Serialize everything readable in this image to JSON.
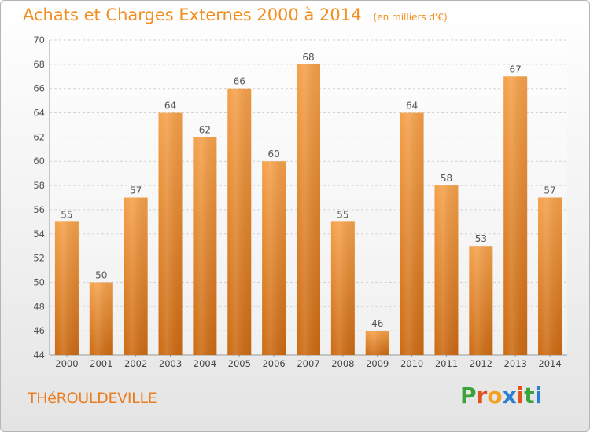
{
  "title": "Achats et Charges Externes 2000 à 2014",
  "unit_note": "(en milliers d'€)",
  "city": "THéROULDEVILLE",
  "brand": {
    "letters": [
      "P",
      "r",
      "o",
      "x",
      "i",
      "t",
      "i"
    ],
    "colors": [
      "#3aa43a",
      "#e0551f",
      "#f3a11e",
      "#2b7fd0",
      "#e0551f",
      "#3aa43a",
      "#2b7fd0"
    ]
  },
  "chart_data": {
    "type": "bar",
    "categories": [
      "2000",
      "2001",
      "2002",
      "2003",
      "2004",
      "2005",
      "2006",
      "2007",
      "2008",
      "2009",
      "2010",
      "2011",
      "2012",
      "2013",
      "2014"
    ],
    "values": [
      55,
      50,
      57,
      64,
      62,
      66,
      60,
      68,
      55,
      46,
      64,
      58,
      53,
      67,
      57
    ],
    "title": "Achats et Charges Externes 2000 à 2014",
    "ylim": [
      44,
      70
    ],
    "yticks": [
      44,
      46,
      48,
      50,
      52,
      54,
      56,
      58,
      60,
      62,
      64,
      66,
      68,
      70
    ],
    "grid": true,
    "bar_color_top": "#f5a14a",
    "bar_color_bottom": "#cc6a12",
    "label_color": "#555555"
  }
}
